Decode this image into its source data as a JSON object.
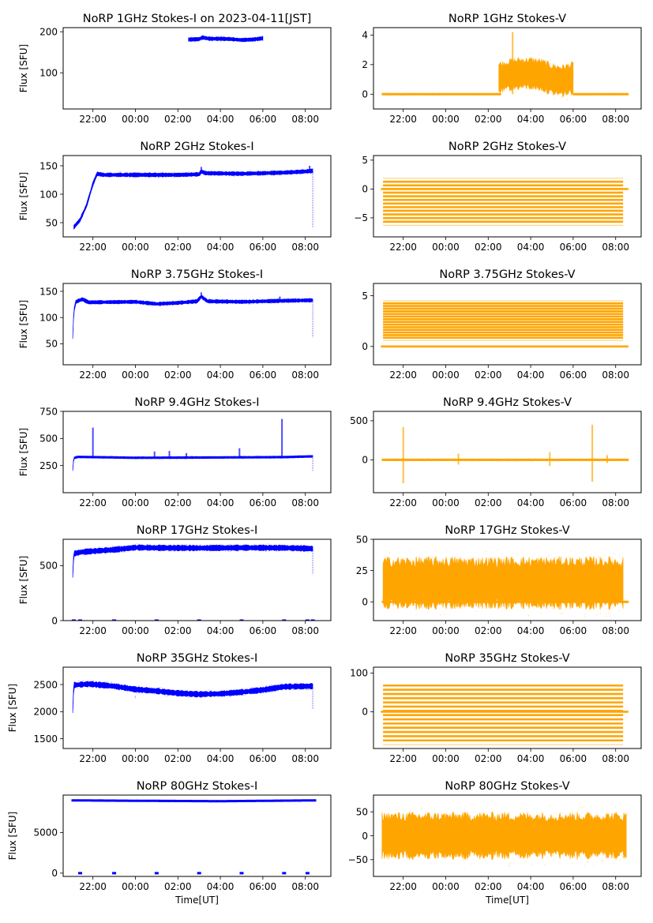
{
  "figure": {
    "xlabel": "Time[UT]",
    "ylabel": "Flux [SFU]",
    "x_tick_labels": [
      "22:00",
      "00:00",
      "02:00",
      "04:00",
      "06:00",
      "08:00"
    ],
    "colors": {
      "stokes_i": "#0000ff",
      "stokes_v": "#ffa500"
    }
  },
  "chart_data": [
    {
      "type": "scatter",
      "title": "NoRP 1GHz Stokes-I on 2023-04-11[JST]",
      "stokes": "I",
      "ylabel": "Flux [SFU]",
      "xlabel": "",
      "ylim": [
        12,
        210
      ],
      "yticks": [
        100,
        200
      ],
      "xlim_hours": [
        -3.4,
        9.2
      ],
      "x_ticks_hours": [
        -2,
        0,
        2,
        4,
        6,
        8
      ],
      "segments": [
        {
          "x_start": 2.5,
          "x_end": 6.0,
          "profile": [
            [
              2.5,
              181
            ],
            [
              3.0,
              182
            ],
            [
              3.15,
              186
            ],
            [
              3.5,
              183
            ],
            [
              4.0,
              183
            ],
            [
              4.5,
              182
            ],
            [
              5.0,
              180
            ],
            [
              5.5,
              181
            ],
            [
              6.0,
              184
            ]
          ],
          "spread": 4
        }
      ],
      "spikes": [],
      "outliers": []
    },
    {
      "type": "scatter",
      "title": "NoRP 1GHz Stokes-V",
      "stokes": "V",
      "ylabel": "",
      "xlabel": "",
      "ylim": [
        -1.0,
        4.5
      ],
      "yticks": [
        0,
        2,
        4
      ],
      "xlim_hours": [
        -3.4,
        9.2
      ],
      "x_ticks_hours": [
        -2,
        0,
        2,
        4,
        6,
        8
      ],
      "segments": [
        {
          "x_start": -3.0,
          "x_end": 2.6,
          "profile": [
            [
              -3.0,
              0
            ],
            [
              2.6,
              0
            ]
          ],
          "spread": 0.05
        },
        {
          "x_start": 2.5,
          "x_end": 6.0,
          "profile": [
            [
              2.5,
              1.1
            ],
            [
              3.0,
              1.3
            ],
            [
              3.5,
              1.4
            ],
            [
              4.0,
              1.4
            ],
            [
              4.5,
              1.3
            ],
            [
              5.0,
              1.0
            ],
            [
              5.5,
              0.9
            ],
            [
              6.0,
              1.1
            ]
          ],
          "spread": 0.9
        },
        {
          "x_start": 6.0,
          "x_end": 8.6,
          "profile": [
            [
              6.0,
              0
            ],
            [
              8.6,
              0
            ]
          ],
          "spread": 0.05
        }
      ],
      "spikes": [
        {
          "x": 3.15,
          "value": 4.2
        }
      ],
      "outliers": []
    },
    {
      "type": "scatter",
      "title": "NoRP 2GHz Stokes-I",
      "stokes": "I",
      "ylabel": "Flux [SFU]",
      "xlabel": "",
      "ylim": [
        25,
        168
      ],
      "yticks": [
        50,
        100,
        150
      ],
      "xlim_hours": [
        -3.4,
        9.2
      ],
      "x_ticks_hours": [
        -2,
        0,
        2,
        4,
        6,
        8
      ],
      "segments": [
        {
          "x_start": -2.9,
          "x_end": 8.35,
          "profile": [
            [
              -2.9,
              42
            ],
            [
              -2.6,
              55
            ],
            [
              -2.3,
              80
            ],
            [
              -2.0,
              118
            ],
            [
              -1.8,
              136
            ],
            [
              -1.5,
              134
            ],
            [
              0,
              134
            ],
            [
              2.0,
              134
            ],
            [
              3.0,
              135
            ],
            [
              3.1,
              140
            ],
            [
              3.3,
              137
            ],
            [
              5.0,
              136
            ],
            [
              7.0,
              138
            ],
            [
              8.0,
              140
            ],
            [
              8.35,
              141
            ]
          ],
          "spread": 3
        }
      ],
      "spikes": [
        {
          "x": 3.1,
          "value": 148
        },
        {
          "x": 8.2,
          "value": 150
        }
      ],
      "outliers": [
        {
          "x": 8.35,
          "from": 140,
          "to": 42
        }
      ]
    },
    {
      "type": "scatter",
      "title": "NoRP 2GHz Stokes-V",
      "stokes": "V",
      "ylabel": "",
      "xlabel": "",
      "ylim": [
        -8.3,
        5.8
      ],
      "yticks": [
        -5,
        0,
        5
      ],
      "xlim_hours": [
        -3.4,
        9.2
      ],
      "x_ticks_hours": [
        -2,
        0,
        2,
        4,
        6,
        8
      ],
      "banded": {
        "x_start": -2.95,
        "x_end": 8.35,
        "levels_min": -6.3,
        "levels_max": 1.9,
        "step": 0.63
      },
      "segments": [],
      "spikes": [],
      "outliers": []
    },
    {
      "type": "scatter",
      "title": "NoRP 3.75GHz Stokes-I",
      "stokes": "I",
      "ylabel": "Flux [SFU]",
      "xlabel": "",
      "ylim": [
        10,
        165
      ],
      "yticks": [
        50,
        100,
        150
      ],
      "xlim_hours": [
        -3.4,
        9.2
      ],
      "x_ticks_hours": [
        -2,
        0,
        2,
        4,
        6,
        8
      ],
      "segments": [
        {
          "x_start": -2.95,
          "x_end": 8.35,
          "profile": [
            [
              -2.95,
              62
            ],
            [
              -2.9,
              112
            ],
            [
              -2.8,
              130
            ],
            [
              -2.5,
              135
            ],
            [
              -2.2,
              129
            ],
            [
              0,
              130
            ],
            [
              1.0,
              126
            ],
            [
              2.0,
              128
            ],
            [
              2.9,
              131
            ],
            [
              3.1,
              140
            ],
            [
              3.4,
              131
            ],
            [
              5.0,
              130
            ],
            [
              7.0,
              132
            ],
            [
              8.35,
              133
            ]
          ],
          "spread": 3
        }
      ],
      "spikes": [
        {
          "x": 3.1,
          "value": 148
        },
        {
          "x": 6.8,
          "value": 140
        }
      ],
      "outliers": [
        {
          "x": 8.35,
          "from": 130,
          "to": 62
        }
      ]
    },
    {
      "type": "scatter",
      "title": "NoRP 3.75GHz Stokes-V",
      "stokes": "V",
      "ylabel": "",
      "xlabel": "",
      "ylim": [
        -1.8,
        6.2
      ],
      "yticks": [
        0,
        5
      ],
      "xlim_hours": [
        -3.4,
        9.2
      ],
      "x_ticks_hours": [
        -2,
        0,
        2,
        4,
        6,
        8
      ],
      "banded": {
        "x_start": -2.95,
        "x_end": 8.35,
        "levels_min": 0.6,
        "levels_max": 4.6,
        "step": 0.26
      },
      "segments": [],
      "spikes": [],
      "outliers": []
    },
    {
      "type": "scatter",
      "title": "NoRP 9.4GHz Stokes-I",
      "stokes": "I",
      "ylabel": "Flux [SFU]",
      "xlabel": "",
      "ylim": [
        0,
        750
      ],
      "yticks": [
        250,
        500,
        750
      ],
      "xlim_hours": [
        -3.4,
        9.2
      ],
      "x_ticks_hours": [
        -2,
        0,
        2,
        4,
        6,
        8
      ],
      "segments": [
        {
          "x_start": -2.95,
          "x_end": 8.35,
          "profile": [
            [
              -2.95,
              210
            ],
            [
              -2.9,
              320
            ],
            [
              -2.7,
              330
            ],
            [
              0,
              322
            ],
            [
              4.0,
              325
            ],
            [
              7.0,
              328
            ],
            [
              8.35,
              335
            ]
          ],
          "spread": 8
        }
      ],
      "spikes": [
        {
          "x": -2.0,
          "value": 600
        },
        {
          "x": 0.9,
          "value": 380
        },
        {
          "x": 1.6,
          "value": 385
        },
        {
          "x": 2.4,
          "value": 365
        },
        {
          "x": 4.9,
          "value": 410
        },
        {
          "x": 6.9,
          "value": 680
        }
      ],
      "outliers": [
        {
          "x": 8.35,
          "from": 320,
          "to": 200
        }
      ]
    },
    {
      "type": "scatter",
      "title": "NoRP 9.4GHz Stokes-V",
      "stokes": "V",
      "ylabel": "",
      "xlabel": "",
      "ylim": [
        -420,
        620
      ],
      "yticks": [
        0,
        500
      ],
      "xlim_hours": [
        -3.4,
        9.2
      ],
      "x_ticks_hours": [
        -2,
        0,
        2,
        4,
        6,
        8
      ],
      "segments": [
        {
          "x_start": -3.0,
          "x_end": 8.6,
          "profile": [
            [
              -3.0,
              0
            ],
            [
              8.6,
              0
            ]
          ],
          "spread": 10
        }
      ],
      "spikes": [
        {
          "x": -2.0,
          "value": 420,
          "low": -300
        },
        {
          "x": 0.6,
          "value": 80,
          "low": -60
        },
        {
          "x": 4.9,
          "value": 100,
          "low": -80
        },
        {
          "x": 6.9,
          "value": 450,
          "low": -280
        },
        {
          "x": 7.6,
          "value": 60,
          "low": -40
        }
      ],
      "outliers": []
    },
    {
      "type": "scatter",
      "title": "NoRP 17GHz Stokes-I",
      "stokes": "I",
      "ylabel": "Flux [SFU]",
      "xlabel": "",
      "ylim": [
        0,
        740
      ],
      "yticks": [
        0,
        500
      ],
      "xlim_hours": [
        -3.4,
        9.2
      ],
      "x_ticks_hours": [
        -2,
        0,
        2,
        4,
        6,
        8
      ],
      "segments": [
        {
          "x_start": -2.95,
          "x_end": 8.35,
          "profile": [
            [
              -2.95,
              410
            ],
            [
              -2.9,
              610
            ],
            [
              -2.5,
              625
            ],
            [
              -1.0,
              645
            ],
            [
              0,
              665
            ],
            [
              1.0,
              662
            ],
            [
              3.0,
              660
            ],
            [
              5.0,
              663
            ],
            [
              7.0,
              662
            ],
            [
              8.35,
              655
            ]
          ],
          "spread": 22
        }
      ],
      "spikes": [],
      "outliers": [
        {
          "x": 8.35,
          "from": 640,
          "to": 420
        }
      ],
      "zero_marks": [
        -2.9,
        -2.6,
        -1.0,
        1.0,
        3.0,
        5.0,
        7.0,
        8.1,
        8.35
      ]
    },
    {
      "type": "scatter",
      "title": "NoRP 17GHz Stokes-V",
      "stokes": "V",
      "ylabel": "",
      "xlabel": "",
      "ylim": [
        -15,
        50
      ],
      "yticks": [
        0,
        25,
        50
      ],
      "xlim_hours": [
        -3.4,
        9.2
      ],
      "x_ticks_hours": [
        -2,
        0,
        2,
        4,
        6,
        8
      ],
      "segments": [
        {
          "x_start": -3.0,
          "x_end": 8.6,
          "profile": [
            [
              -3.0,
              0
            ],
            [
              8.6,
              0
            ]
          ],
          "spread": 0.5
        },
        {
          "x_start": -2.95,
          "x_end": 8.35,
          "profile": [
            [
              -2.95,
              15
            ],
            [
              8.35,
              15
            ]
          ],
          "spread": 17
        }
      ],
      "spikes": [],
      "outliers": []
    },
    {
      "type": "scatter",
      "title": "NoRP 35GHz Stokes-I",
      "stokes": "I",
      "ylabel": "Flux [SFU]",
      "xlabel": "",
      "ylim": [
        1320,
        2820
      ],
      "yticks": [
        1500,
        2000,
        2500
      ],
      "xlim_hours": [
        -3.4,
        9.2
      ],
      "x_ticks_hours": [
        -2,
        0,
        2,
        4,
        6,
        8
      ],
      "segments": [
        {
          "x_start": -2.95,
          "x_end": 8.35,
          "profile": [
            [
              -2.95,
              2020
            ],
            [
              -2.9,
              2490
            ],
            [
              -2.2,
              2510
            ],
            [
              -1.0,
              2470
            ],
            [
              0,
              2410
            ],
            [
              1.0,
              2380
            ],
            [
              2.0,
              2340
            ],
            [
              3.0,
              2320
            ],
            [
              4.0,
              2330
            ],
            [
              5.0,
              2360
            ],
            [
              6.0,
              2400
            ],
            [
              7.0,
              2460
            ],
            [
              8.35,
              2470
            ]
          ],
          "spread": 45
        }
      ],
      "spikes": [],
      "outliers": [
        {
          "x": 0.0,
          "from": 2290,
          "to": 2240
        },
        {
          "x": 8.35,
          "from": 2430,
          "to": 2050
        }
      ]
    },
    {
      "type": "scatter",
      "title": "NoRP 35GHz Stokes-V",
      "stokes": "V",
      "ylabel": "",
      "xlabel": "",
      "ylim": [
        -95,
        115
      ],
      "yticks": [
        0,
        100
      ],
      "xlim_hours": [
        -3.4,
        9.2
      ],
      "x_ticks_hours": [
        -2,
        0,
        2,
        4,
        6,
        8
      ],
      "banded": {
        "x_start": -2.95,
        "x_end": 8.35,
        "levels_min": -85,
        "levels_max": 78,
        "step": 10.9
      },
      "segments": [],
      "spikes": [],
      "outliers": []
    },
    {
      "type": "scatter",
      "title": "NoRP 80GHz Stokes-I",
      "stokes": "I",
      "ylabel": "Flux [SFU]",
      "xlabel": "Time[UT]",
      "ylim": [
        -400,
        9600
      ],
      "yticks": [
        0,
        5000
      ],
      "xlim_hours": [
        -3.4,
        9.2
      ],
      "x_ticks_hours": [
        -2,
        0,
        2,
        4,
        6,
        8
      ],
      "segments": [
        {
          "x_start": -3.0,
          "x_end": 8.5,
          "profile": [
            [
              -3.0,
              8950
            ],
            [
              0,
              8900
            ],
            [
              4.0,
              8850
            ],
            [
              8.5,
              8950
            ]
          ],
          "spread": 80
        }
      ],
      "spikes": [],
      "outliers": [],
      "zero_marks": [
        -2.6,
        -1.0,
        1.0,
        3.0,
        5.0,
        7.0,
        8.1
      ]
    },
    {
      "type": "scatter",
      "title": "NoRP 80GHz Stokes-V",
      "stokes": "V",
      "ylabel": "",
      "xlabel": "Time[UT]",
      "ylim": [
        -85,
        85
      ],
      "yticks": [
        -50,
        0,
        50
      ],
      "xlim_hours": [
        -3.4,
        9.2
      ],
      "x_ticks_hours": [
        -2,
        0,
        2,
        4,
        6,
        8
      ],
      "segments": [
        {
          "x_start": -3.0,
          "x_end": 8.5,
          "profile": [
            [
              -3.0,
              0
            ],
            [
              8.5,
              0
            ]
          ],
          "spread": 40
        }
      ],
      "spikes": [],
      "outliers": []
    }
  ]
}
